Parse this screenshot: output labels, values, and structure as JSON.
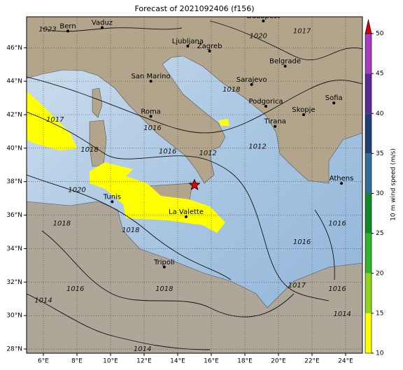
{
  "title": "Forecast of 2021092406 (f156)",
  "map": {
    "lon_range": [
      5,
      25
    ],
    "lat_range": [
      27.75,
      47.85
    ],
    "lon_ticks": [
      {
        "value": 6,
        "label": "6°E"
      },
      {
        "value": 8,
        "label": "8°E"
      },
      {
        "value": 10,
        "label": "10°E"
      },
      {
        "value": 12,
        "label": "12°E"
      },
      {
        "value": 14,
        "label": "14°E"
      },
      {
        "value": 16,
        "label": "16°E"
      },
      {
        "value": 18,
        "label": "18°E"
      },
      {
        "value": 20,
        "label": "20°E"
      },
      {
        "value": 22,
        "label": "22°E"
      },
      {
        "value": 24,
        "label": "24°E"
      }
    ],
    "lat_ticks": [
      {
        "value": 28,
        "label": "28°N"
      },
      {
        "value": 30,
        "label": "30°N"
      },
      {
        "value": 32,
        "label": "32°N"
      },
      {
        "value": 34,
        "label": "34°N"
      },
      {
        "value": 36,
        "label": "36°N"
      },
      {
        "value": 38,
        "label": "38°N"
      },
      {
        "value": 40,
        "label": "40°N"
      },
      {
        "value": 42,
        "label": "42°N"
      },
      {
        "value": 44,
        "label": "44°N"
      },
      {
        "value": 46,
        "label": "46°N"
      }
    ],
    "cities": [
      {
        "name": "Bern",
        "lon": 7.46,
        "lat": 47.0
      },
      {
        "name": "Vaduz",
        "lon": 9.5,
        "lat": 47.2
      },
      {
        "name": "Ljubljana",
        "lon": 14.6,
        "lat": 46.1
      },
      {
        "name": "Zagreb",
        "lon": 15.9,
        "lat": 45.8
      },
      {
        "name": "Budapest",
        "lon": 19.1,
        "lat": 47.6
      },
      {
        "name": "Belgrade",
        "lon": 20.4,
        "lat": 44.9
      },
      {
        "name": "San Marino",
        "lon": 12.4,
        "lat": 44.0
      },
      {
        "name": "Sarajevo",
        "lon": 18.4,
        "lat": 43.8
      },
      {
        "name": "Roma",
        "lon": 12.4,
        "lat": 41.9
      },
      {
        "name": "Podgorica",
        "lon": 19.25,
        "lat": 42.5
      },
      {
        "name": "Sofia",
        "lon": 23.3,
        "lat": 42.7
      },
      {
        "name": "Skopje",
        "lon": 21.5,
        "lat": 42.0
      },
      {
        "name": "Tirana",
        "lon": 19.8,
        "lat": 41.3
      },
      {
        "name": "Athens",
        "lon": 23.75,
        "lat": 37.9
      },
      {
        "name": "Tunis",
        "lon": 10.1,
        "lat": 36.8
      },
      {
        "name": "La Valette",
        "lon": 14.5,
        "lat": 35.9
      },
      {
        "name": "Tripoli",
        "lon": 13.2,
        "lat": 32.9
      }
    ],
    "marker": {
      "lon": 15.0,
      "lat": 37.8,
      "color": "#e00000"
    },
    "isobars": [
      {
        "label": "1023",
        "lon": 6.25,
        "lat": 47.1
      },
      {
        "label": "1020",
        "lon": 18.8,
        "lat": 46.7
      },
      {
        "label": "1017",
        "lon": 21.4,
        "lat": 47.0
      },
      {
        "label": "1017",
        "lon": 6.7,
        "lat": 41.7
      },
      {
        "label": "1018",
        "lon": 17.2,
        "lat": 43.5
      },
      {
        "label": "1016",
        "lon": 12.5,
        "lat": 41.2
      },
      {
        "label": "1016",
        "lon": 13.4,
        "lat": 39.8
      },
      {
        "label": "1012",
        "lon": 15.8,
        "lat": 39.7
      },
      {
        "label": "1012",
        "lon": 18.75,
        "lat": 40.1
      },
      {
        "label": "1018",
        "lon": 8.75,
        "lat": 39.9
      },
      {
        "label": "1020",
        "lon": 8.0,
        "lat": 37.5
      },
      {
        "label": "1018",
        "lon": 7.1,
        "lat": 35.5
      },
      {
        "label": "1018",
        "lon": 11.2,
        "lat": 35.1
      },
      {
        "label": "1016",
        "lon": 21.4,
        "lat": 34.4
      },
      {
        "label": "1016",
        "lon": 23.5,
        "lat": 35.5
      },
      {
        "label": "1017",
        "lon": 21.1,
        "lat": 31.8
      },
      {
        "label": "1016",
        "lon": 7.9,
        "lat": 31.6
      },
      {
        "label": "1018",
        "lon": 13.2,
        "lat": 31.6
      },
      {
        "label": "1016",
        "lon": 23.5,
        "lat": 31.6
      },
      {
        "label": "1014",
        "lon": 6.0,
        "lat": 30.9
      },
      {
        "label": "1014",
        "lon": 23.8,
        "lat": 30.1
      },
      {
        "label": "1014",
        "lon": 11.9,
        "lat": 28.0
      }
    ]
  },
  "colorbar": {
    "label": "10 m wind speed (m/s)",
    "lim": [
      10,
      50
    ],
    "ticks": [
      10,
      15,
      20,
      25,
      30,
      35,
      40,
      45,
      50
    ],
    "colors": [
      "#ffff00",
      "#8fd41a",
      "#2fb52a",
      "#0f8a2a",
      "#2f6e98",
      "#1f3f72",
      "#5a2a90",
      "#a63cc2"
    ],
    "extend_color": "#d40000"
  }
}
